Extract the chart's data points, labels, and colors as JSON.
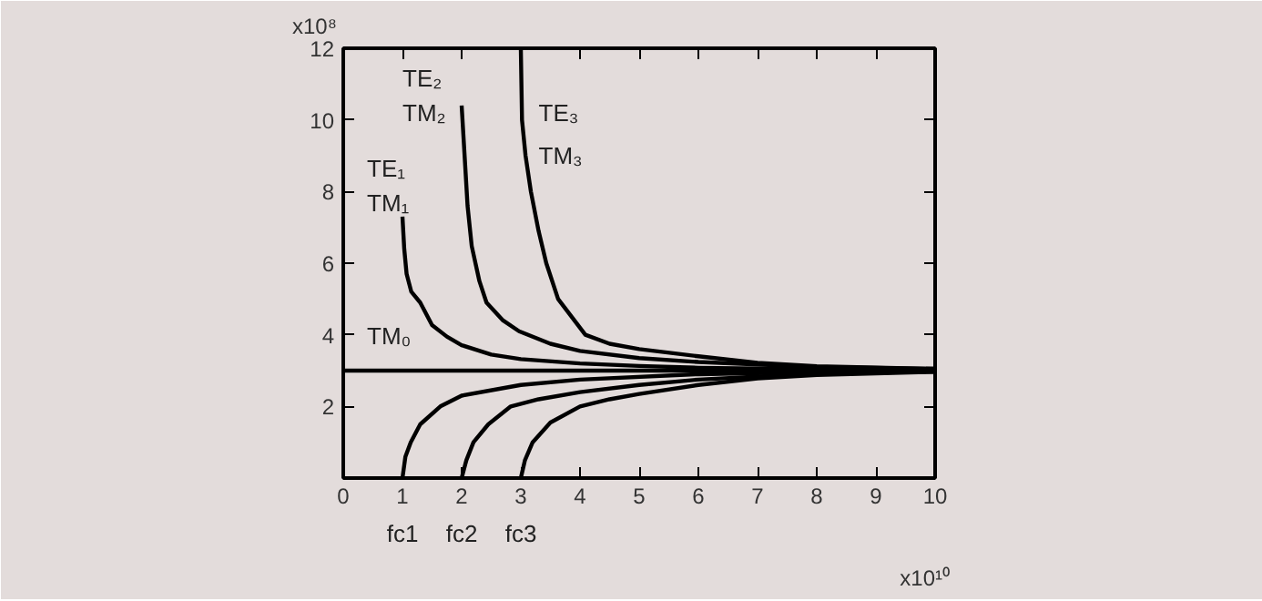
{
  "chart_data": {
    "type": "line",
    "xlim": [
      0,
      10
    ],
    "ylim": [
      0,
      12
    ],
    "xticks": [
      0,
      1,
      2,
      3,
      4,
      5,
      6,
      7,
      8,
      9,
      10
    ],
    "yticks": [
      2,
      4,
      6,
      8,
      10,
      12
    ],
    "grid": false,
    "marker": "none",
    "line_style": "solid",
    "series": [
      {
        "color": "#000000",
        "x": [
          0,
          10
        ],
        "values": [
          3,
          3
        ]
      },
      {
        "color": "#000000",
        "x": [
          1.0,
          1.03,
          1.07,
          1.15,
          1.3,
          1.5,
          1.75,
          2,
          2.5,
          3,
          4,
          5,
          6,
          8,
          10
        ],
        "values": [
          7.3,
          6.4,
          5.7,
          5.2,
          4.9,
          4.27,
          3.95,
          3.71,
          3.45,
          3.32,
          3.2,
          3.13,
          3.08,
          3.04,
          3.02
        ]
      },
      {
        "color": "#000000",
        "x": [
          2.0,
          2.05,
          2.1,
          2.17,
          2.3,
          2.42,
          2.7,
          2.97,
          3.5,
          4,
          5,
          6,
          8,
          10
        ],
        "values": [
          10.4,
          9.0,
          7.6,
          6.48,
          5.5,
          4.9,
          4.4,
          4.1,
          3.75,
          3.55,
          3.35,
          3.24,
          3.1,
          3.05
        ]
      },
      {
        "color": "#000000",
        "x": [
          3.0,
          3.02,
          3.08,
          3.17,
          3.3,
          3.43,
          3.63,
          4.09,
          4.5,
          5,
          6,
          7,
          8,
          10
        ],
        "values": [
          12,
          10,
          9,
          8,
          6.9,
          6,
          5,
          4,
          3.75,
          3.6,
          3.4,
          3.22,
          3.12,
          3.05
        ]
      },
      {
        "color": "#000000",
        "x": [
          1.0,
          1.05,
          1.14,
          1.3,
          1.64,
          2,
          3,
          4,
          6,
          8,
          10
        ],
        "values": [
          0,
          0.6,
          1,
          1.5,
          2,
          2.3,
          2.6,
          2.75,
          2.9,
          2.96,
          2.99
        ]
      },
      {
        "color": "#000000",
        "x": [
          2.0,
          2.08,
          2.2,
          2.45,
          2.83,
          3.3,
          4,
          5,
          6,
          8,
          10
        ],
        "values": [
          0,
          0.5,
          1,
          1.5,
          2,
          2.2,
          2.4,
          2.6,
          2.75,
          2.92,
          2.97
        ]
      },
      {
        "color": "#000000",
        "x": [
          3.0,
          3.07,
          3.2,
          3.5,
          4.0,
          4.5,
          5,
          6,
          7,
          8,
          10
        ],
        "values": [
          0,
          0.5,
          1,
          1.55,
          2,
          2.2,
          2.35,
          2.6,
          2.78,
          2.88,
          2.97
        ]
      }
    ],
    "annotations": [
      "x10⁸",
      "x10¹⁰",
      "TE₁",
      "TM₁",
      "TE₂",
      "TM₂",
      "TE₃",
      "TM₃",
      "TM₀",
      "fc1",
      "fc2",
      "fc3"
    ]
  }
}
